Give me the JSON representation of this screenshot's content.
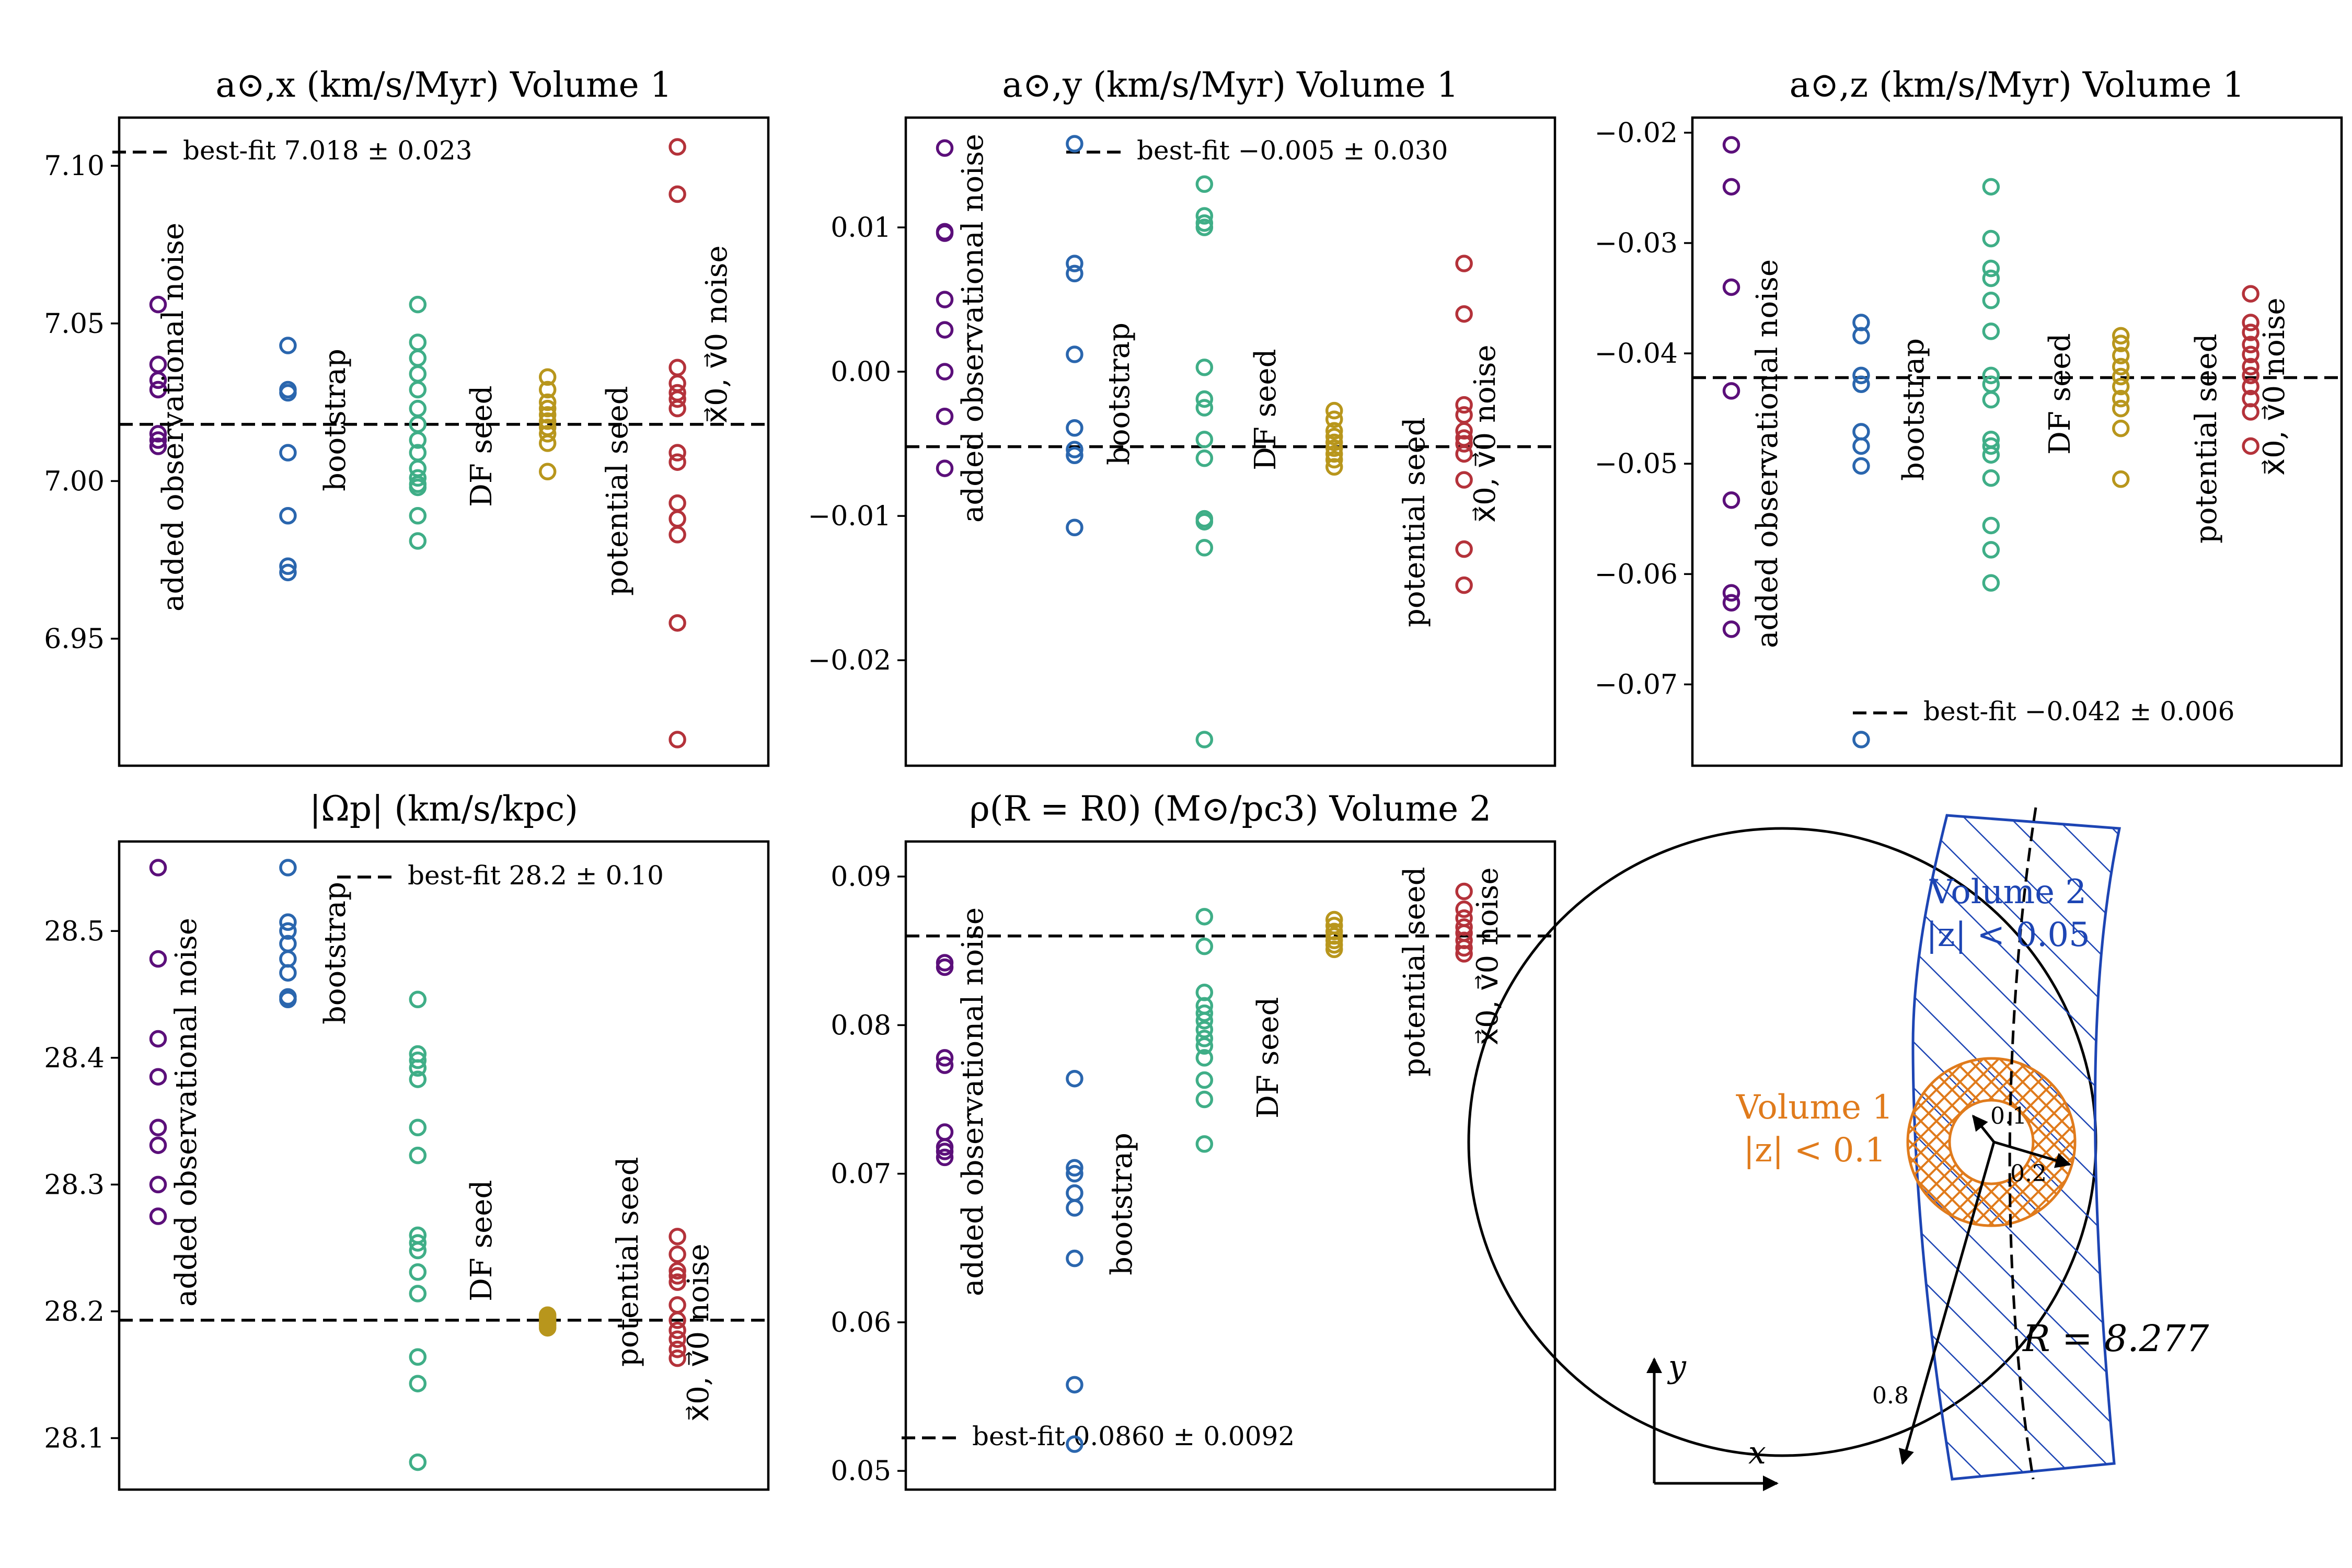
{
  "colors": {
    "added observational noise": "#5b0f7a",
    "bootstrap": "#2a66ae",
    "DF seed": "#3fae87",
    "potential seed": "#b8961c",
    "noise": "#b4323a",
    "volume1": "#e07b1c",
    "volume2": "#1d45b4"
  },
  "chart_data": [
    {
      "type": "scatter",
      "title": "a⊙,x (km/s/Myr) Volume 1",
      "ylim": [
        6.918,
        7.107
      ],
      "yticks": [
        7.1,
        7.05,
        7.0,
        6.95
      ],
      "ytick_labels": [
        "7.10",
        "7.05",
        "7.00",
        "6.95"
      ],
      "groups": [
        "added observational noise",
        "bootstrap",
        "DF seed",
        "potential seed",
        "x⃗0, v⃗0 noise"
      ],
      "best_fit": {
        "label": "best-fit 7.018 ± 0.023",
        "value": 7.018
      },
      "series": [
        {
          "name": "added observational noise",
          "values": [
            7.056,
            7.037,
            7.032,
            7.029,
            7.015,
            7.013,
            7.011
          ]
        },
        {
          "name": "bootstrap",
          "values": [
            7.043,
            7.029,
            7.028,
            7.009,
            6.989,
            6.973,
            6.971
          ]
        },
        {
          "name": "DF seed",
          "values": [
            7.056,
            7.044,
            7.039,
            7.034,
            7.029,
            7.023,
            7.018,
            7.013,
            7.009,
            7.004,
            7.001,
            6.999,
            6.998,
            6.989,
            6.981
          ]
        },
        {
          "name": "potential seed",
          "values": [
            7.033,
            7.029,
            7.025,
            7.023,
            7.021,
            7.019,
            7.017,
            7.015,
            7.012,
            7.003
          ]
        },
        {
          "name": "x⃗0, v⃗0 noise",
          "values": [
            7.106,
            7.091,
            7.036,
            7.031,
            7.028,
            7.026,
            7.023,
            7.009,
            7.006,
            6.993,
            6.988,
            6.983,
            6.955,
            6.918
          ]
        }
      ]
    },
    {
      "type": "scatter",
      "title": "a⊙,y (km/s/Myr) Volume 1",
      "ylim": [
        -0.0255,
        0.0158
      ],
      "yticks": [
        0.01,
        0.0,
        -0.01,
        -0.02
      ],
      "ytick_labels": [
        "0.01",
        "0.00",
        "−0.01",
        "−0.02"
      ],
      "groups": [
        "added observational noise",
        "bootstrap",
        "DF seed",
        "potential seed",
        "x⃗0, v⃗0 noise"
      ],
      "best_fit": {
        "label": "best-fit −0.005 ± 0.030",
        "value": -0.0052
      },
      "series": [
        {
          "name": "added observational noise",
          "values": [
            0.0155,
            0.0097,
            0.0096,
            0.005,
            0.0029,
            0.0,
            -0.0031,
            -0.0067
          ]
        },
        {
          "name": "bootstrap",
          "values": [
            0.0158,
            0.0075,
            0.0068,
            0.0012,
            -0.0039,
            -0.0054,
            -0.0058,
            -0.0108
          ]
        },
        {
          "name": "DF seed",
          "values": [
            0.013,
            0.0108,
            0.0103,
            0.01,
            0.0003,
            -0.0019,
            -0.0025,
            -0.0047,
            -0.006,
            -0.0102,
            -0.0104,
            -0.0122,
            -0.0255
          ]
        },
        {
          "name": "potential seed",
          "values": [
            -0.0027,
            -0.0033,
            -0.0041,
            -0.0045,
            -0.0049,
            -0.0053,
            -0.0057,
            -0.0061,
            -0.0066
          ]
        },
        {
          "name": "x⃗0, v⃗0 noise",
          "values": [
            0.0075,
            0.004,
            -0.0023,
            -0.003,
            -0.0041,
            -0.0046,
            -0.005,
            -0.0057,
            -0.0075,
            -0.0123,
            -0.0148
          ]
        }
      ]
    },
    {
      "type": "scatter",
      "title": "a⊙,z (km/s/Myr) Volume 1",
      "ylim": [
        -0.075,
        -0.021
      ],
      "yticks": [
        -0.02,
        -0.03,
        -0.04,
        -0.05,
        -0.06,
        -0.07
      ],
      "ytick_labels": [
        "−0.02",
        "−0.03",
        "−0.04",
        "−0.05",
        "−0.06",
        "−0.07"
      ],
      "groups": [
        "added observational noise",
        "bootstrap",
        "DF seed",
        "potential seed",
        "x⃗0, v⃗0 noise"
      ],
      "best_fit": {
        "label": "best-fit −0.042 ± 0.006",
        "value": -0.0422
      },
      "series": [
        {
          "name": "added observational noise",
          "values": [
            -0.0211,
            -0.0249,
            -0.034,
            -0.0434,
            -0.0533,
            -0.0617,
            -0.0626,
            -0.065
          ]
        },
        {
          "name": "bootstrap",
          "values": [
            -0.0372,
            -0.0384,
            -0.042,
            -0.0428,
            -0.0471,
            -0.0484,
            -0.0502,
            -0.075
          ]
        },
        {
          "name": "DF seed",
          "values": [
            -0.0249,
            -0.0296,
            -0.0323,
            -0.0332,
            -0.0352,
            -0.038,
            -0.042,
            -0.0428,
            -0.0442,
            -0.0478,
            -0.0484,
            -0.0492,
            -0.0513,
            -0.0556,
            -0.0578,
            -0.0608
          ]
        },
        {
          "name": "potential seed",
          "values": [
            -0.0384,
            -0.0391,
            -0.0402,
            -0.0412,
            -0.0421,
            -0.043,
            -0.0441,
            -0.045,
            -0.0468,
            -0.0514
          ]
        },
        {
          "name": "x⃗0, v⃗0 noise",
          "values": [
            -0.0346,
            -0.0372,
            -0.0381,
            -0.0392,
            -0.0401,
            -0.0412,
            -0.042,
            -0.043,
            -0.0441,
            -0.0453,
            -0.0484
          ]
        }
      ]
    },
    {
      "type": "scatter",
      "title": "|Ωp| (km/s/kpc)",
      "ylim": [
        28.08,
        28.55
      ],
      "yticks": [
        28.5,
        28.4,
        28.3,
        28.2,
        28.1
      ],
      "ytick_labels": [
        "28.5",
        "28.4",
        "28.3",
        "28.2",
        "28.1"
      ],
      "groups": [
        "added observational noise",
        "bootstrap",
        "DF seed",
        "potential seed",
        "x⃗0, v⃗0 noise"
      ],
      "best_fit": {
        "label": "best-fit 28.2 ± 0.10",
        "value": 28.193
      },
      "series": [
        {
          "name": "added observational noise",
          "values": [
            28.55,
            28.478,
            28.415,
            28.385,
            28.345,
            28.331,
            28.3,
            28.275
          ]
        },
        {
          "name": "bootstrap",
          "values": [
            28.55,
            28.507,
            28.5,
            28.49,
            28.478,
            28.467,
            28.448,
            28.446
          ]
        },
        {
          "name": "DF seed",
          "values": [
            28.446,
            28.403,
            28.398,
            28.392,
            28.383,
            28.345,
            28.323,
            28.26,
            28.254,
            28.248,
            28.231,
            28.214,
            28.164,
            28.143,
            28.081
          ]
        },
        {
          "name": "potential seed",
          "values": [
            28.197,
            28.195,
            28.193,
            28.191,
            28.189,
            28.187
          ]
        },
        {
          "name": "x⃗0, v⃗0 noise",
          "values": [
            28.259,
            28.245,
            28.232,
            28.228,
            28.223,
            28.205,
            28.193,
            28.185,
            28.178,
            28.17,
            28.163
          ]
        }
      ]
    },
    {
      "type": "scatter",
      "title": "ρ(R = R0) (M⊙/pc3) Volume 2",
      "ylim": [
        0.0505,
        0.0906
      ],
      "yticks": [
        0.09,
        0.08,
        0.07,
        0.06,
        0.05
      ],
      "ytick_labels": [
        "0.09",
        "0.08",
        "0.07",
        "0.06",
        "0.05"
      ],
      "groups": [
        "added observational noise",
        "bootstrap",
        "DF seed",
        "potential seed",
        "x⃗0, v⃗0 noise"
      ],
      "best_fit": {
        "label": "best-fit 0.0860 ± 0.0092",
        "value": 0.086
      },
      "series": [
        {
          "name": "added observational noise",
          "values": [
            0.0842,
            0.0839,
            0.0778,
            0.0773,
            0.0728,
            0.0718,
            0.0715,
            0.0711
          ]
        },
        {
          "name": "bootstrap",
          "values": [
            0.0764,
            0.0704,
            0.07,
            0.0687,
            0.0677,
            0.0643,
            0.0558,
            0.0518
          ]
        },
        {
          "name": "DF seed",
          "values": [
            0.0873,
            0.0853,
            0.0822,
            0.0813,
            0.0808,
            0.0803,
            0.0797,
            0.0791,
            0.0786,
            0.0778,
            0.0763,
            0.075,
            0.072
          ]
        },
        {
          "name": "potential seed",
          "values": [
            0.0871,
            0.0867,
            0.0863,
            0.086,
            0.0857,
            0.0854,
            0.0851
          ]
        },
        {
          "name": "x⃗0, v⃗0 noise",
          "values": [
            0.089,
            0.0878,
            0.0872,
            0.0866,
            0.0862,
            0.0857,
            0.0852,
            0.0848
          ]
        }
      ]
    }
  ],
  "diagram": {
    "volume2_label": "Volume 2",
    "volume2_cond": "|z| < 0.05",
    "volume1_label": "Volume 1",
    "volume1_cond": "|z| < 0.1",
    "r_inner": "0.1",
    "r_outer": "0.2",
    "r_arrow": "0.8",
    "R_label": "R = 8.277",
    "axis_x": "x",
    "axis_y": "y"
  }
}
